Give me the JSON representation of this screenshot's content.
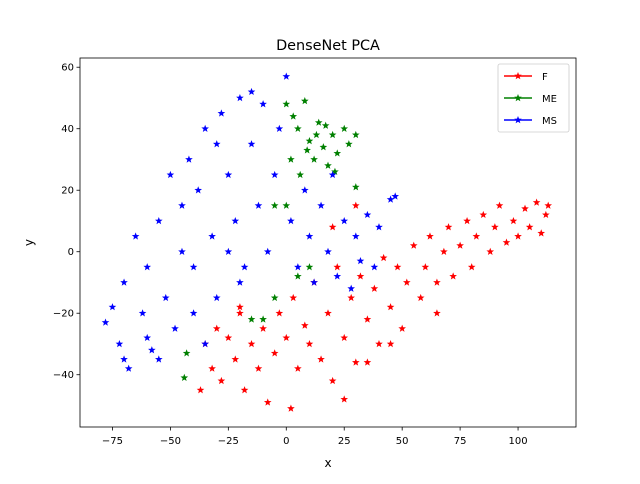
{
  "chart_data": {
    "type": "scatter",
    "title": "DenseNet PCA",
    "xlabel": "x",
    "ylabel": "y",
    "xlim": [
      -89,
      125
    ],
    "ylim": [
      -57,
      63
    ],
    "xticks": [
      -75,
      -50,
      -25,
      0,
      25,
      50,
      75,
      100
    ],
    "yticks": [
      -40,
      -20,
      0,
      20,
      40,
      60
    ],
    "marker": "star",
    "grid": false,
    "legend_position": "top-right",
    "series": [
      {
        "name": "F",
        "color": "#ff0000",
        "description": "dense elongated cloud from about (-35,-30) to (113,15)",
        "points": [
          [
            -35,
            -30
          ],
          [
            -32,
            -38
          ],
          [
            -30,
            -25
          ],
          [
            -28,
            -42
          ],
          [
            -25,
            -28
          ],
          [
            -22,
            -35
          ],
          [
            -20,
            -20
          ],
          [
            -18,
            -45
          ],
          [
            -15,
            -30
          ],
          [
            -12,
            -38
          ],
          [
            -10,
            -25
          ],
          [
            -8,
            -49
          ],
          [
            -5,
            -33
          ],
          [
            -3,
            -20
          ],
          [
            0,
            -28
          ],
          [
            2,
            -51
          ],
          [
            3,
            -15
          ],
          [
            5,
            -38
          ],
          [
            8,
            -24
          ],
          [
            10,
            -30
          ],
          [
            12,
            -10
          ],
          [
            15,
            -35
          ],
          [
            18,
            -20
          ],
          [
            20,
            -42
          ],
          [
            22,
            -5
          ],
          [
            25,
            -28
          ],
          [
            28,
            -15
          ],
          [
            30,
            -36
          ],
          [
            32,
            -8
          ],
          [
            35,
            -22
          ],
          [
            38,
            -12
          ],
          [
            40,
            -30
          ],
          [
            42,
            -2
          ],
          [
            45,
            -18
          ],
          [
            48,
            -5
          ],
          [
            50,
            -25
          ],
          [
            52,
            -10
          ],
          [
            55,
            2
          ],
          [
            58,
            -15
          ],
          [
            60,
            -5
          ],
          [
            62,
            5
          ],
          [
            65,
            -10
          ],
          [
            68,
            0
          ],
          [
            70,
            8
          ],
          [
            72,
            -8
          ],
          [
            75,
            2
          ],
          [
            78,
            10
          ],
          [
            80,
            -5
          ],
          [
            82,
            5
          ],
          [
            85,
            12
          ],
          [
            88,
            0
          ],
          [
            90,
            8
          ],
          [
            92,
            15
          ],
          [
            95,
            3
          ],
          [
            98,
            10
          ],
          [
            100,
            5
          ],
          [
            103,
            14
          ],
          [
            105,
            8
          ],
          [
            108,
            16
          ],
          [
            110,
            6
          ],
          [
            113,
            15
          ],
          [
            112,
            12
          ],
          [
            -37,
            -45
          ],
          [
            25,
            -48
          ],
          [
            35,
            -36
          ],
          [
            45,
            -30
          ],
          [
            65,
            -20
          ],
          [
            30,
            15
          ],
          [
            20,
            8
          ],
          [
            -20,
            -18
          ]
        ]
      },
      {
        "name": "ME",
        "color": "#008000",
        "description": "cluster near (10,35) with scattered points",
        "points": [
          [
            0,
            48
          ],
          [
            3,
            44
          ],
          [
            5,
            40
          ],
          [
            8,
            49
          ],
          [
            10,
            36
          ],
          [
            12,
            30
          ],
          [
            14,
            42
          ],
          [
            16,
            34
          ],
          [
            18,
            28
          ],
          [
            20,
            38
          ],
          [
            22,
            32
          ],
          [
            25,
            40
          ],
          [
            27,
            35
          ],
          [
            30,
            38
          ],
          [
            2,
            30
          ],
          [
            6,
            25
          ],
          [
            9,
            33
          ],
          [
            13,
            38
          ],
          [
            17,
            41
          ],
          [
            21,
            26
          ],
          [
            -5,
            15
          ],
          [
            0,
            15
          ],
          [
            5,
            -8
          ],
          [
            10,
            -5
          ],
          [
            -10,
            -22
          ],
          [
            -15,
            -22
          ],
          [
            -5,
            -15
          ],
          [
            -44,
            -41
          ],
          [
            -43,
            -33
          ],
          [
            30,
            21
          ]
        ]
      },
      {
        "name": "MS",
        "color": "#0000ff",
        "description": "large cloud from about (-78,-38) to (47,57)",
        "points": [
          [
            -78,
            -23
          ],
          [
            -75,
            -18
          ],
          [
            -72,
            -30
          ],
          [
            -70,
            -10
          ],
          [
            -68,
            -38
          ],
          [
            -65,
            5
          ],
          [
            -62,
            -20
          ],
          [
            -60,
            -5
          ],
          [
            -58,
            -32
          ],
          [
            -55,
            10
          ],
          [
            -52,
            -15
          ],
          [
            -50,
            25
          ],
          [
            -48,
            -25
          ],
          [
            -45,
            15
          ],
          [
            -42,
            30
          ],
          [
            -40,
            -5
          ],
          [
            -38,
            20
          ],
          [
            -35,
            40
          ],
          [
            -32,
            5
          ],
          [
            -30,
            -15
          ],
          [
            -28,
            45
          ],
          [
            -25,
            25
          ],
          [
            -22,
            10
          ],
          [
            -20,
            50
          ],
          [
            -18,
            -5
          ],
          [
            -15,
            35
          ],
          [
            -12,
            15
          ],
          [
            -10,
            48
          ],
          [
            -8,
            0
          ],
          [
            -5,
            25
          ],
          [
            -3,
            40
          ],
          [
            0,
            57
          ],
          [
            2,
            10
          ],
          [
            5,
            -5
          ],
          [
            8,
            20
          ],
          [
            10,
            5
          ],
          [
            12,
            -10
          ],
          [
            15,
            15
          ],
          [
            18,
            0
          ],
          [
            20,
            25
          ],
          [
            22,
            -8
          ],
          [
            25,
            10
          ],
          [
            28,
            -12
          ],
          [
            30,
            5
          ],
          [
            32,
            -3
          ],
          [
            35,
            12
          ],
          [
            38,
            -5
          ],
          [
            40,
            8
          ],
          [
            45,
            17
          ],
          [
            47,
            18
          ],
          [
            -60,
            -28
          ],
          [
            -55,
            -35
          ],
          [
            -70,
            -35
          ],
          [
            -40,
            -20
          ],
          [
            -35,
            -30
          ],
          [
            -25,
            0
          ],
          [
            -20,
            -10
          ],
          [
            -45,
            0
          ],
          [
            -30,
            35
          ],
          [
            -15,
            52
          ]
        ]
      }
    ]
  }
}
